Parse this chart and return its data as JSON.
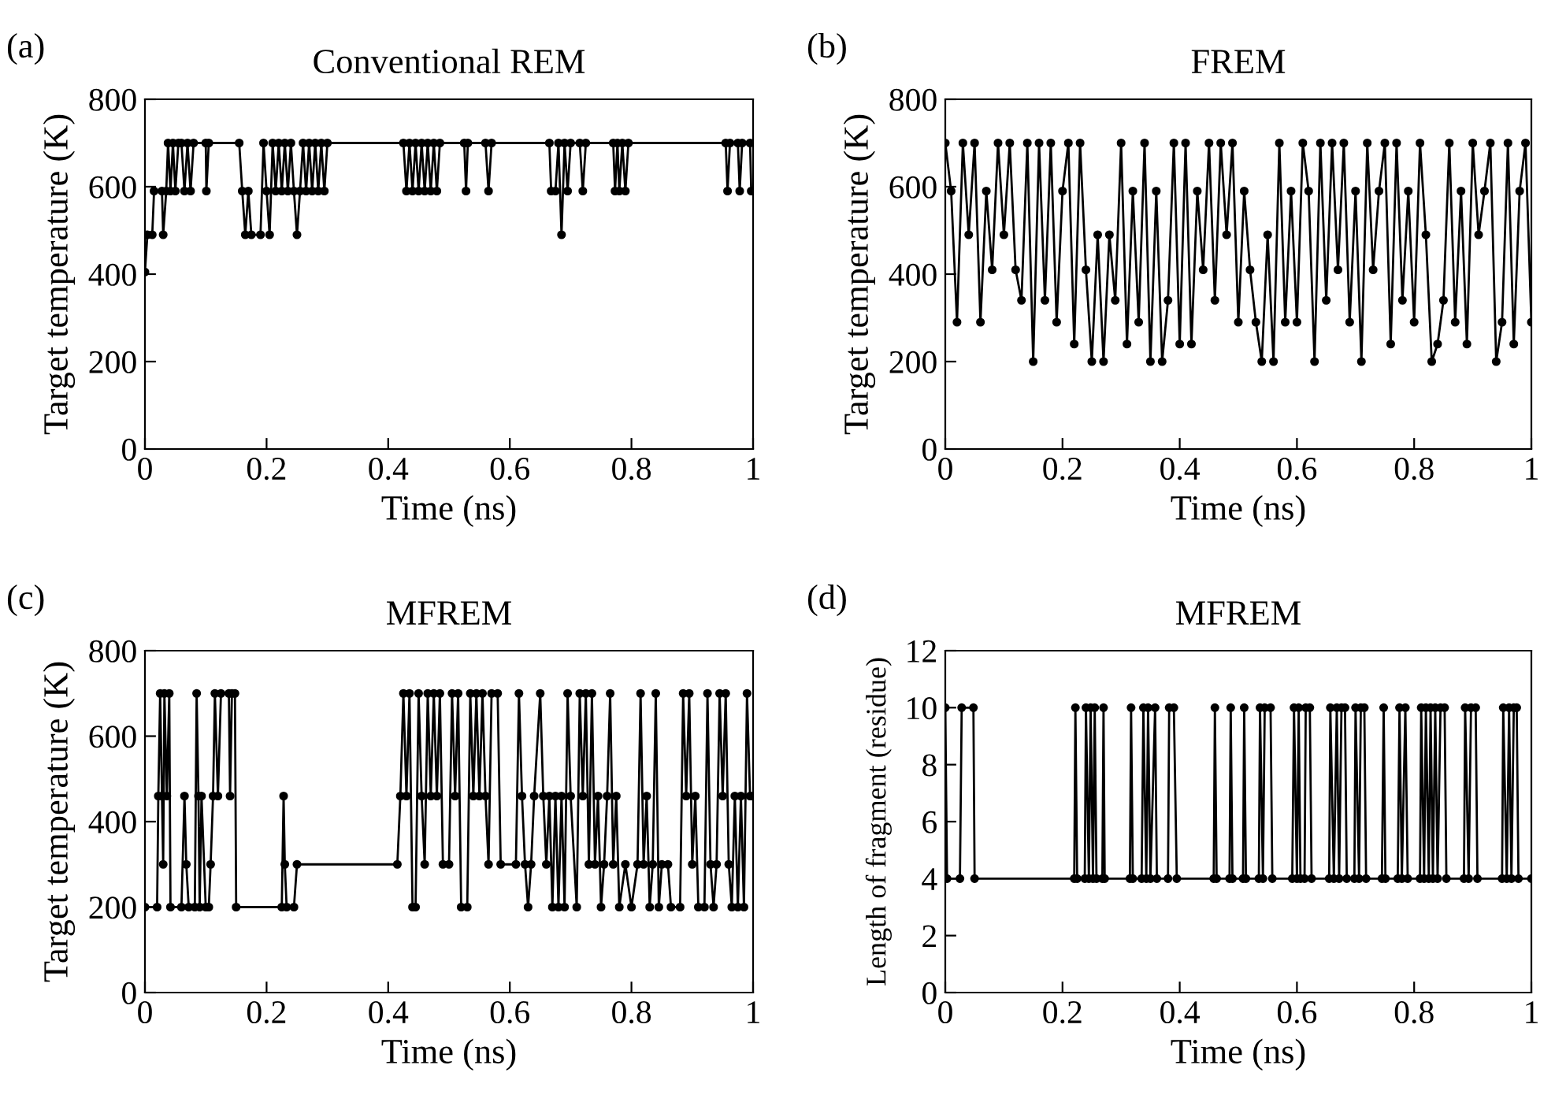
{
  "chart_data": [
    {
      "type": "line",
      "title": "Conventional REM",
      "xlabel": "Time (ns)",
      "ylabel": "Target temperature (K)",
      "annotations": [
        "(a)"
      ],
      "xlim": [
        0,
        1
      ],
      "xticks": [
        0,
        0.2,
        0.4,
        0.6,
        0.8,
        1
      ],
      "ylim": [
        0,
        800
      ],
      "yticks": [
        0,
        200,
        400,
        600,
        800
      ],
      "marker": "circle",
      "line_style": "solid",
      "grid": false,
      "legend": false,
      "series": [
        {
          "color": "#000000",
          "x": [
            0,
            0.004,
            0.012,
            0.015,
            0.028,
            0.03,
            0.035,
            0.038,
            0.042,
            0.046,
            0.05,
            0.055,
            0.06,
            0.065,
            0.07,
            0.075,
            0.08,
            0.1,
            0.101,
            0.105,
            0.155,
            0.16,
            0.165,
            0.17,
            0.175,
            0.19,
            0.195,
            0.2,
            0.205,
            0.21,
            0.215,
            0.22,
            0.225,
            0.23,
            0.235,
            0.24,
            0.245,
            0.25,
            0.255,
            0.26,
            0.265,
            0.27,
            0.275,
            0.28,
            0.285,
            0.29,
            0.295,
            0.3,
            0.425,
            0.43,
            0.435,
            0.44,
            0.445,
            0.45,
            0.455,
            0.46,
            0.465,
            0.47,
            0.475,
            0.48,
            0.485,
            0.525,
            0.528,
            0.531,
            0.56,
            0.565,
            0.57,
            0.665,
            0.668,
            0.675,
            0.68,
            0.685,
            0.69,
            0.695,
            0.7,
            0.715,
            0.72,
            0.725,
            0.77,
            0.773,
            0.777,
            0.78,
            0.785,
            0.79,
            0.795,
            0.955,
            0.958,
            0.962,
            0.975,
            0.978,
            0.982,
            0.995,
            0.997,
            1
          ],
          "values": [
            405,
            490,
            490,
            590,
            590,
            490,
            590,
            700,
            590,
            700,
            590,
            700,
            700,
            590,
            700,
            590,
            700,
            700,
            590,
            700,
            700,
            590,
            490,
            590,
            490,
            490,
            700,
            590,
            490,
            700,
            590,
            700,
            590,
            700,
            590,
            700,
            590,
            490,
            590,
            700,
            590,
            700,
            590,
            700,
            590,
            700,
            590,
            700,
            700,
            590,
            700,
            590,
            700,
            590,
            700,
            590,
            700,
            590,
            700,
            590,
            700,
            700,
            590,
            700,
            700,
            590,
            700,
            700,
            590,
            590,
            700,
            490,
            700,
            590,
            700,
            700,
            590,
            700,
            700,
            590,
            700,
            590,
            700,
            590,
            700,
            700,
            590,
            700,
            700,
            590,
            700,
            700,
            590,
            590
          ]
        }
      ]
    },
    {
      "type": "line",
      "title": "FREM",
      "xlabel": "Time (ns)",
      "ylabel": "Target temperature (K)",
      "annotations": [
        "(b)"
      ],
      "xlim": [
        0,
        1
      ],
      "xticks": [
        0,
        0.2,
        0.4,
        0.6,
        0.8,
        1
      ],
      "ylim": [
        0,
        800
      ],
      "yticks": [
        0,
        200,
        400,
        600,
        800
      ],
      "marker": "circle",
      "line_style": "solid",
      "grid": false,
      "legend": false,
      "series": [
        {
          "color": "#000000",
          "x": [
            0,
            0.01,
            0.02,
            0.03,
            0.04,
            0.05,
            0.06,
            0.07,
            0.08,
            0.09,
            0.1,
            0.11,
            0.12,
            0.13,
            0.14,
            0.15,
            0.16,
            0.17,
            0.18,
            0.19,
            0.2,
            0.21,
            0.22,
            0.23,
            0.24,
            0.25,
            0.26,
            0.27,
            0.28,
            0.29,
            0.3,
            0.31,
            0.32,
            0.33,
            0.34,
            0.35,
            0.36,
            0.37,
            0.38,
            0.39,
            0.4,
            0.41,
            0.42,
            0.43,
            0.44,
            0.45,
            0.46,
            0.47,
            0.48,
            0.49,
            0.5,
            0.51,
            0.52,
            0.53,
            0.54,
            0.55,
            0.56,
            0.57,
            0.58,
            0.59,
            0.6,
            0.61,
            0.62,
            0.63,
            0.64,
            0.65,
            0.66,
            0.67,
            0.68,
            0.69,
            0.7,
            0.71,
            0.72,
            0.73,
            0.74,
            0.75,
            0.76,
            0.77,
            0.78,
            0.79,
            0.8,
            0.81,
            0.82,
            0.83,
            0.84,
            0.85,
            0.86,
            0.87,
            0.88,
            0.89,
            0.9,
            0.91,
            0.92,
            0.93,
            0.94,
            0.95,
            0.96,
            0.97,
            0.98,
            0.99,
            1
          ],
          "values": [
            700,
            590,
            290,
            700,
            490,
            700,
            290,
            590,
            410,
            700,
            490,
            700,
            410,
            340,
            700,
            200,
            700,
            340,
            700,
            290,
            590,
            700,
            240,
            700,
            410,
            200,
            490,
            200,
            490,
            340,
            700,
            240,
            590,
            290,
            700,
            200,
            590,
            200,
            340,
            700,
            240,
            700,
            240,
            590,
            410,
            700,
            340,
            700,
            490,
            700,
            290,
            590,
            410,
            290,
            200,
            490,
            200,
            700,
            290,
            590,
            290,
            700,
            590,
            200,
            700,
            340,
            700,
            410,
            700,
            290,
            590,
            200,
            700,
            410,
            590,
            700,
            240,
            700,
            340,
            590,
            290,
            700,
            490,
            200,
            240,
            340,
            700,
            290,
            590,
            240,
            700,
            490,
            590,
            700,
            200,
            290,
            700,
            240,
            590,
            700,
            290
          ]
        }
      ]
    },
    {
      "type": "line",
      "title": "MFREM",
      "xlabel": "Time (ns)",
      "ylabel": "Target temperature (K)",
      "annotations": [
        "(c)"
      ],
      "xlim": [
        0,
        1
      ],
      "xticks": [
        0,
        0.2,
        0.4,
        0.6,
        0.8,
        1
      ],
      "ylim": [
        0,
        800
      ],
      "yticks": [
        0,
        200,
        400,
        600,
        800
      ],
      "marker": "circle",
      "line_style": "solid",
      "grid": false,
      "legend": false,
      "series": [
        {
          "color": "#000000",
          "x": [
            0,
            0.02,
            0.022,
            0.025,
            0.028,
            0.03,
            0.032,
            0.036,
            0.04,
            0.042,
            0.06,
            0.065,
            0.068,
            0.072,
            0.082,
            0.085,
            0.088,
            0.09,
            0.093,
            0.1,
            0.105,
            0.108,
            0.112,
            0.115,
            0.12,
            0.125,
            0.138,
            0.14,
            0.143,
            0.148,
            0.15,
            0.225,
            0.228,
            0.23,
            0.233,
            0.245,
            0.25,
            0.415,
            0.42,
            0.425,
            0.43,
            0.435,
            0.44,
            0.445,
            0.45,
            0.455,
            0.46,
            0.465,
            0.47,
            0.475,
            0.48,
            0.485,
            0.49,
            0.5,
            0.505,
            0.51,
            0.515,
            0.52,
            0.53,
            0.535,
            0.54,
            0.545,
            0.55,
            0.555,
            0.56,
            0.565,
            0.57,
            0.58,
            0.585,
            0.61,
            0.615,
            0.62,
            0.625,
            0.63,
            0.635,
            0.64,
            0.65,
            0.655,
            0.66,
            0.665,
            0.67,
            0.675,
            0.68,
            0.685,
            0.69,
            0.695,
            0.7,
            0.71,
            0.715,
            0.72,
            0.725,
            0.73,
            0.735,
            0.74,
            0.745,
            0.75,
            0.755,
            0.76,
            0.765,
            0.77,
            0.775,
            0.78,
            0.79,
            0.8,
            0.81,
            0.815,
            0.82,
            0.825,
            0.83,
            0.835,
            0.84,
            0.845,
            0.85,
            0.86,
            0.865,
            0.88,
            0.885,
            0.89,
            0.895,
            0.9,
            0.905,
            0.91,
            0.92,
            0.925,
            0.93,
            0.935,
            0.94,
            0.945,
            0.95,
            0.955,
            0.96,
            0.965,
            0.97,
            0.975,
            0.98,
            0.985,
            0.99,
            0.995,
            1
          ],
          "values": [
            200,
            200,
            460,
            700,
            460,
            300,
            700,
            460,
            700,
            200,
            200,
            460,
            300,
            200,
            200,
            700,
            460,
            200,
            460,
            200,
            200,
            300,
            460,
            700,
            460,
            700,
            700,
            460,
            700,
            700,
            200,
            200,
            460,
            300,
            200,
            200,
            300,
            300,
            460,
            700,
            460,
            700,
            200,
            200,
            700,
            460,
            300,
            700,
            460,
            700,
            460,
            700,
            300,
            300,
            700,
            460,
            700,
            200,
            200,
            700,
            460,
            700,
            460,
            700,
            460,
            300,
            700,
            700,
            300,
            300,
            700,
            460,
            300,
            200,
            300,
            460,
            700,
            460,
            300,
            460,
            200,
            460,
            200,
            460,
            200,
            700,
            460,
            200,
            700,
            460,
            700,
            300,
            700,
            300,
            460,
            200,
            300,
            460,
            700,
            300,
            460,
            200,
            300,
            200,
            300,
            700,
            300,
            460,
            200,
            300,
            700,
            200,
            300,
            300,
            200,
            200,
            700,
            460,
            700,
            300,
            460,
            200,
            200,
            700,
            300,
            200,
            300,
            700,
            460,
            700,
            300,
            200,
            460,
            200,
            460,
            200,
            700,
            460,
            460
          ]
        }
      ]
    },
    {
      "type": "line",
      "title": "MFREM",
      "xlabel": "Time (ns)",
      "ylabel": "Length of fragment (residue)",
      "annotations": [
        "(d)"
      ],
      "xlim": [
        0,
        1
      ],
      "xticks": [
        0,
        0.2,
        0.4,
        0.6,
        0.8,
        1
      ],
      "ylim": [
        0,
        12
      ],
      "yticks": [
        0,
        2,
        4,
        6,
        8,
        10,
        12
      ],
      "marker": "circle",
      "line_style": "solid",
      "grid": false,
      "legend": false,
      "series": [
        {
          "color": "#000000",
          "x": [
            0,
            0.003,
            0.025,
            0.028,
            0.048,
            0.05,
            0.22,
            0.222,
            0.225,
            0.238,
            0.24,
            0.245,
            0.248,
            0.252,
            0.255,
            0.258,
            0.268,
            0.27,
            0.272,
            0.315,
            0.317,
            0.32,
            0.335,
            0.338,
            0.343,
            0.346,
            0.35,
            0.358,
            0.361,
            0.38,
            0.382,
            0.39,
            0.395,
            0.458,
            0.46,
            0.463,
            0.485,
            0.487,
            0.49,
            0.508,
            0.51,
            0.513,
            0.535,
            0.537,
            0.542,
            0.545,
            0.555,
            0.558,
            0.592,
            0.595,
            0.6,
            0.603,
            0.606,
            0.613,
            0.615,
            0.622,
            0.625,
            0.655,
            0.657,
            0.663,
            0.668,
            0.672,
            0.676,
            0.682,
            0.685,
            0.698,
            0.7,
            0.706,
            0.709,
            0.715,
            0.718,
            0.745,
            0.748,
            0.751,
            0.772,
            0.775,
            0.779,
            0.785,
            0.789,
            0.81,
            0.812,
            0.817,
            0.82,
            0.825,
            0.828,
            0.832,
            0.836,
            0.84,
            0.845,
            0.852,
            0.855,
            0.885,
            0.887,
            0.893,
            0.897,
            0.905,
            0.908,
            0.95,
            0.952,
            0.958,
            0.962,
            0.966,
            0.97,
            0.975,
            0.978,
            1
          ],
          "values": [
            10,
            4,
            4,
            10,
            10,
            4,
            4,
            10,
            4,
            4,
            10,
            4,
            10,
            4,
            10,
            4,
            4,
            10,
            4,
            4,
            10,
            4,
            4,
            10,
            4,
            10,
            4,
            10,
            4,
            4,
            10,
            10,
            4,
            4,
            10,
            4,
            4,
            10,
            4,
            4,
            10,
            4,
            4,
            10,
            4,
            10,
            10,
            4,
            4,
            10,
            4,
            10,
            4,
            4,
            10,
            10,
            4,
            4,
            10,
            4,
            10,
            4,
            10,
            10,
            4,
            4,
            10,
            4,
            10,
            10,
            4,
            4,
            10,
            4,
            4,
            10,
            4,
            10,
            4,
            4,
            10,
            4,
            10,
            4,
            10,
            4,
            10,
            4,
            10,
            10,
            4,
            4,
            10,
            4,
            10,
            10,
            4,
            4,
            10,
            4,
            10,
            4,
            10,
            10,
            4,
            4
          ]
        }
      ]
    }
  ]
}
